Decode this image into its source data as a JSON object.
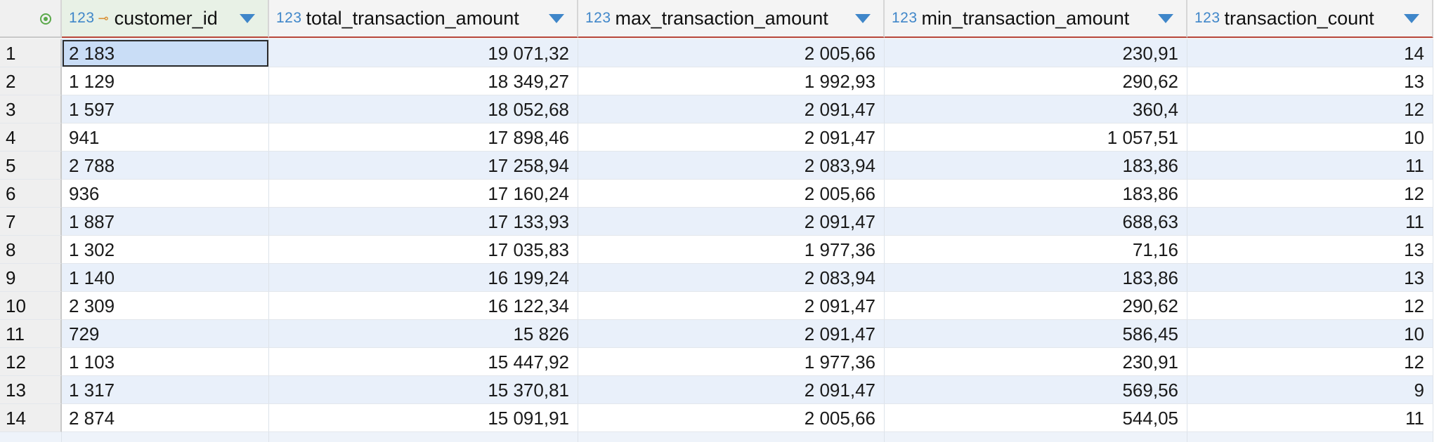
{
  "columns": [
    {
      "type": "123",
      "label": "customer_id",
      "key": true
    },
    {
      "type": "123",
      "label": "total_transaction_amount"
    },
    {
      "type": "123",
      "label": "max_transaction_amount"
    },
    {
      "type": "123",
      "label": "min_transaction_amount"
    },
    {
      "type": "123",
      "label": "transaction_count"
    }
  ],
  "rows": [
    {
      "n": "1",
      "c": [
        "2 183",
        "19 071,32",
        "2 005,66",
        "230,91",
        "14"
      ]
    },
    {
      "n": "2",
      "c": [
        "1 129",
        "18 349,27",
        "1 992,93",
        "290,62",
        "13"
      ]
    },
    {
      "n": "3",
      "c": [
        "1 597",
        "18 052,68",
        "2 091,47",
        "360,4",
        "12"
      ]
    },
    {
      "n": "4",
      "c": [
        "941",
        "17 898,46",
        "2 091,47",
        "1 057,51",
        "10"
      ]
    },
    {
      "n": "5",
      "c": [
        "2 788",
        "17 258,94",
        "2 083,94",
        "183,86",
        "11"
      ]
    },
    {
      "n": "6",
      "c": [
        "936",
        "17 160,24",
        "2 005,66",
        "183,86",
        "12"
      ]
    },
    {
      "n": "7",
      "c": [
        "1 887",
        "17 133,93",
        "2 091,47",
        "688,63",
        "11"
      ]
    },
    {
      "n": "8",
      "c": [
        "1 302",
        "17 035,83",
        "1 977,36",
        "71,16",
        "13"
      ]
    },
    {
      "n": "9",
      "c": [
        "1 140",
        "16 199,24",
        "2 083,94",
        "183,86",
        "13"
      ]
    },
    {
      "n": "10",
      "c": [
        "2 309",
        "16 122,34",
        "2 091,47",
        "290,62",
        "12"
      ]
    },
    {
      "n": "11",
      "c": [
        "729",
        "15 826",
        "2 091,47",
        "586,45",
        "10"
      ]
    },
    {
      "n": "12",
      "c": [
        "1 103",
        "15 447,92",
        "1 977,36",
        "230,91",
        "12"
      ]
    },
    {
      "n": "13",
      "c": [
        "1 317",
        "15 370,81",
        "2 091,47",
        "569,56",
        "9"
      ]
    },
    {
      "n": "14",
      "c": [
        "2 874",
        "15 091,91",
        "2 005,66",
        "544,05",
        "11"
      ]
    }
  ],
  "icons": {
    "key": "key-icon",
    "sort": "sort-dropdown-icon",
    "corner": "select-all-icon"
  },
  "colors": {
    "accent": "#3f86c9",
    "row_alt": "#e9f0fa",
    "header_line": "#b8473a"
  }
}
